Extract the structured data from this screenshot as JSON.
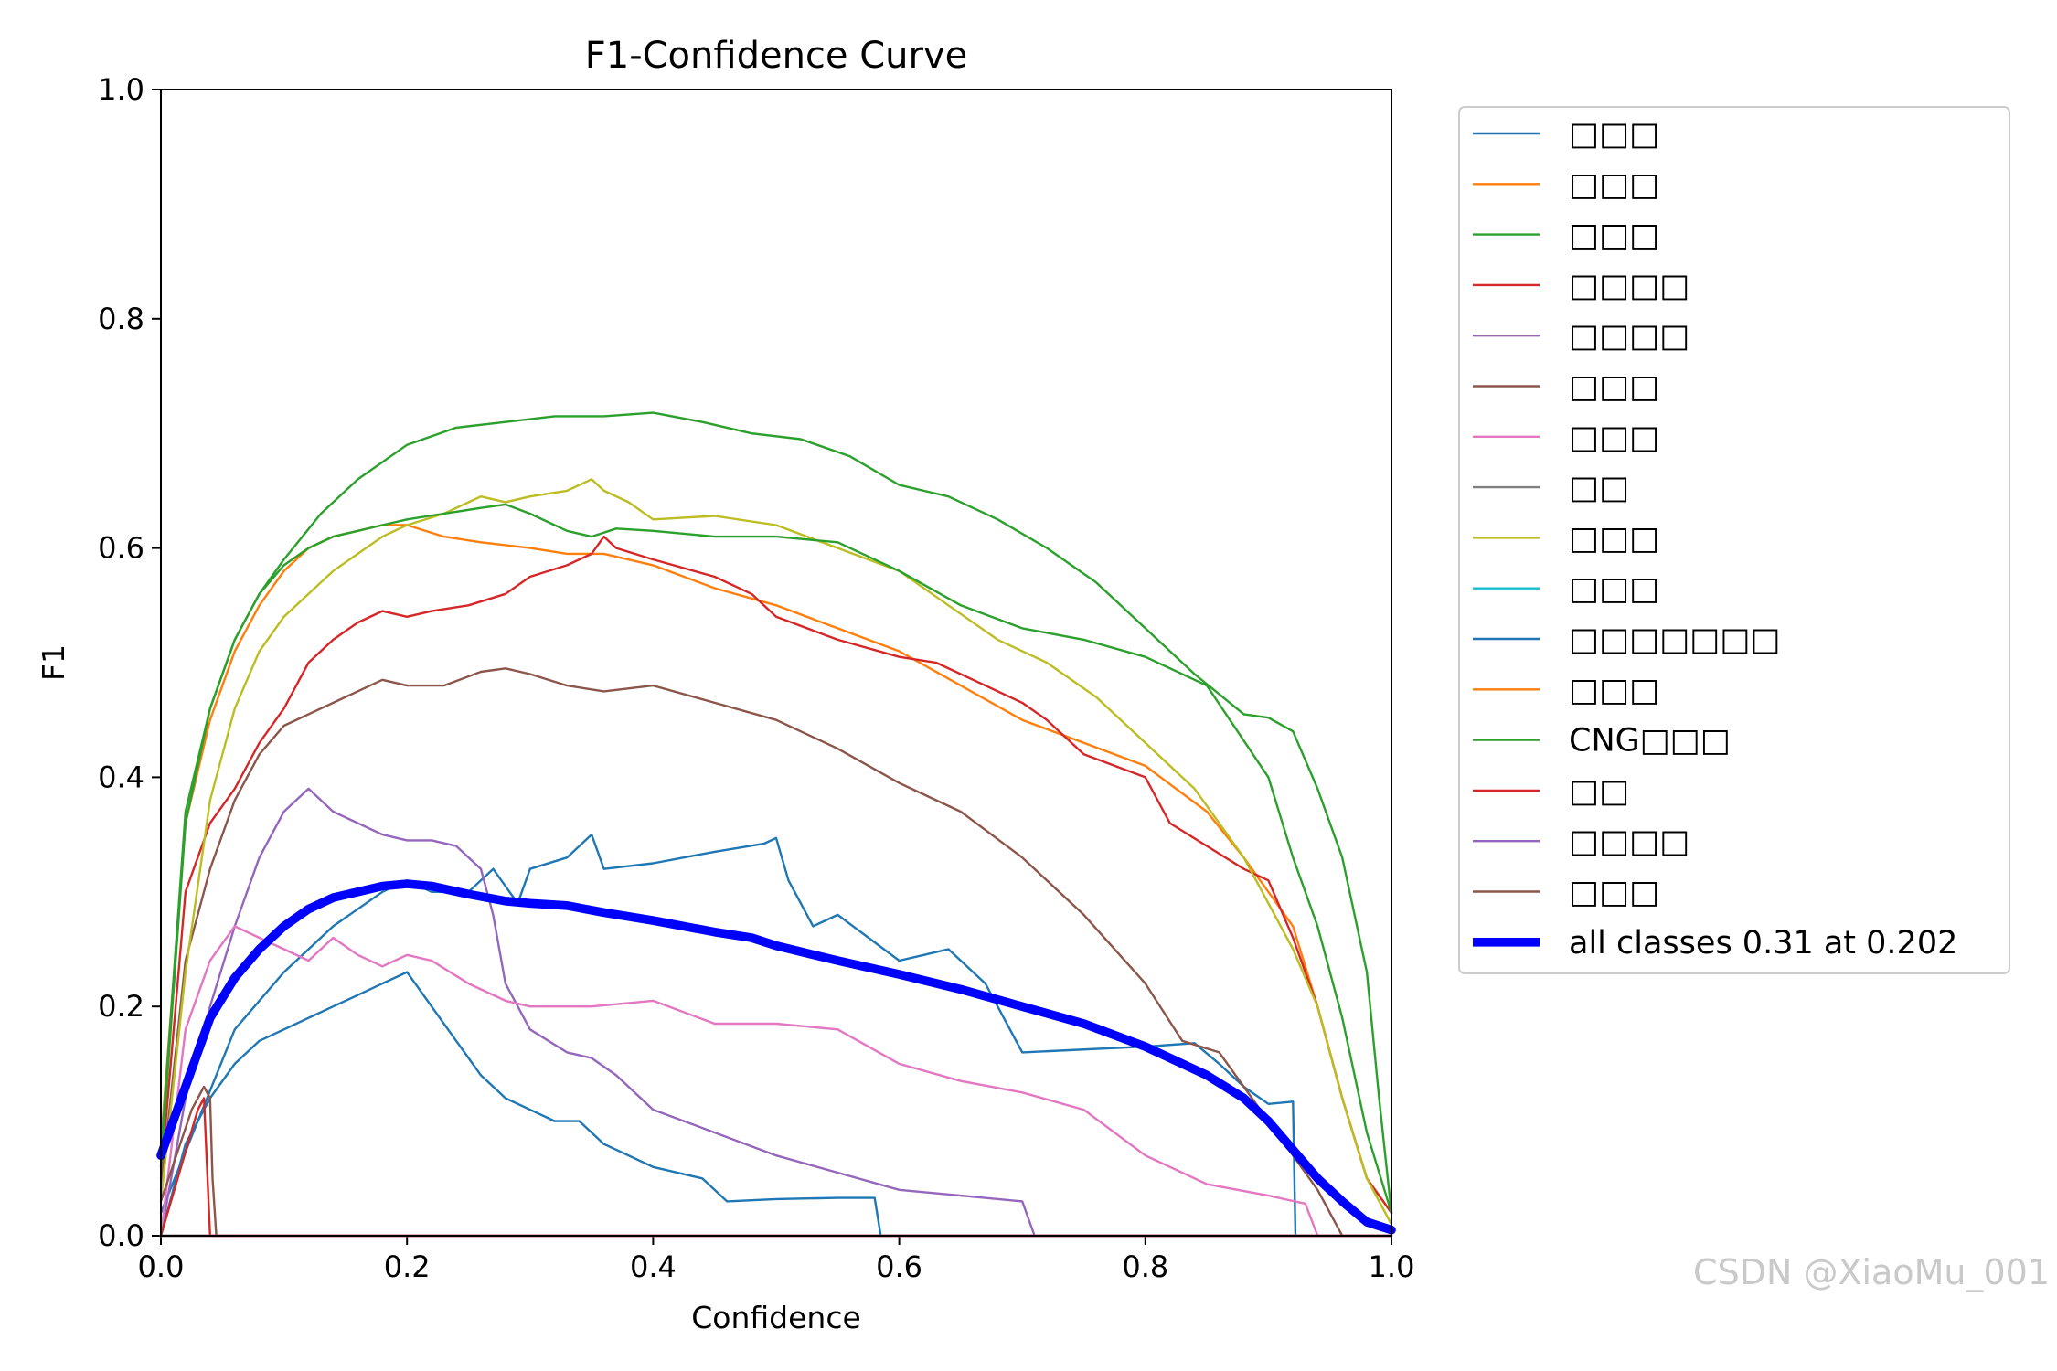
{
  "chart_data": {
    "type": "line",
    "title": "F1-Confidence Curve",
    "xlabel": "Confidence",
    "ylabel": "F1",
    "xlim": [
      0.0,
      1.0
    ],
    "ylim": [
      0.0,
      1.0
    ],
    "xticks": [
      "0.0",
      "0.2",
      "0.4",
      "0.6",
      "0.8",
      "1.0"
    ],
    "yticks": [
      "0.0",
      "0.2",
      "0.4",
      "0.6",
      "0.8",
      "1.0"
    ],
    "legend_position": "outside-right",
    "series": [
      {
        "name": "□□□",
        "color": "#1f77b4",
        "width": 1.5,
        "x": [
          0.0,
          0.03,
          0.06,
          0.1,
          0.14,
          0.18,
          0.2,
          0.22,
          0.25,
          0.27,
          0.29,
          0.3,
          0.33,
          0.35,
          0.36,
          0.4,
          0.45,
          0.49,
          0.5,
          0.51,
          0.53,
          0.55,
          0.6,
          0.62,
          0.64,
          0.65,
          0.67,
          0.7,
          0.8,
          0.84,
          0.86,
          0.88,
          0.9,
          0.92,
          0.922,
          0.93,
          1.0
        ],
        "y": [
          0.02,
          0.1,
          0.18,
          0.23,
          0.27,
          0.3,
          0.31,
          0.3,
          0.3,
          0.32,
          0.29,
          0.32,
          0.33,
          0.35,
          0.32,
          0.325,
          0.335,
          0.342,
          0.347,
          0.31,
          0.27,
          0.28,
          0.24,
          0.245,
          0.25,
          0.24,
          0.22,
          0.16,
          0.165,
          0.168,
          0.15,
          0.13,
          0.115,
          0.117,
          0.0,
          0.0,
          0.0
        ]
      },
      {
        "name": "□□□",
        "color": "#ff7f0e",
        "width": 1.5,
        "x": [
          0.0,
          0.02,
          0.04,
          0.06,
          0.08,
          0.1,
          0.12,
          0.14,
          0.16,
          0.18,
          0.2,
          0.23,
          0.26,
          0.3,
          0.33,
          0.36,
          0.4,
          0.45,
          0.5,
          0.55,
          0.6,
          0.65,
          0.7,
          0.75,
          0.8,
          0.85,
          0.88,
          0.9,
          0.92,
          0.94,
          0.96,
          0.98,
          1.0
        ],
        "y": [
          0.08,
          0.36,
          0.45,
          0.51,
          0.55,
          0.58,
          0.6,
          0.61,
          0.615,
          0.62,
          0.62,
          0.61,
          0.605,
          0.6,
          0.595,
          0.595,
          0.585,
          0.565,
          0.55,
          0.53,
          0.51,
          0.48,
          0.45,
          0.43,
          0.41,
          0.37,
          0.33,
          0.3,
          0.27,
          0.2,
          0.12,
          0.05,
          0.02
        ]
      },
      {
        "name": "□□□",
        "color": "#2ca02c",
        "width": 1.5,
        "x": [
          0.0,
          0.02,
          0.04,
          0.06,
          0.08,
          0.1,
          0.13,
          0.16,
          0.2,
          0.24,
          0.28,
          0.32,
          0.36,
          0.4,
          0.44,
          0.48,
          0.52,
          0.56,
          0.6,
          0.64,
          0.68,
          0.72,
          0.76,
          0.8,
          0.84,
          0.88,
          0.9,
          0.92,
          0.94,
          0.96,
          0.98,
          0.99,
          1.0
        ],
        "y": [
          0.07,
          0.37,
          0.46,
          0.52,
          0.56,
          0.59,
          0.63,
          0.66,
          0.69,
          0.705,
          0.71,
          0.715,
          0.715,
          0.718,
          0.71,
          0.7,
          0.695,
          0.68,
          0.655,
          0.645,
          0.625,
          0.6,
          0.57,
          0.53,
          0.49,
          0.455,
          0.452,
          0.44,
          0.39,
          0.33,
          0.23,
          0.12,
          0.02
        ]
      },
      {
        "name": "□□□□",
        "color": "#d62728",
        "width": 1.5,
        "x": [
          0.0,
          0.02,
          0.04,
          0.06,
          0.08,
          0.1,
          0.12,
          0.14,
          0.16,
          0.18,
          0.2,
          0.22,
          0.25,
          0.28,
          0.3,
          0.33,
          0.35,
          0.36,
          0.37,
          0.4,
          0.45,
          0.48,
          0.5,
          0.55,
          0.6,
          0.63,
          0.66,
          0.7,
          0.72,
          0.75,
          0.8,
          0.82,
          0.85,
          0.88,
          0.9,
          0.92,
          0.94,
          0.96,
          0.98,
          1.0
        ],
        "y": [
          0.05,
          0.3,
          0.36,
          0.39,
          0.43,
          0.46,
          0.5,
          0.52,
          0.535,
          0.545,
          0.54,
          0.545,
          0.55,
          0.56,
          0.575,
          0.585,
          0.595,
          0.61,
          0.6,
          0.59,
          0.575,
          0.56,
          0.54,
          0.52,
          0.505,
          0.5,
          0.485,
          0.465,
          0.45,
          0.42,
          0.4,
          0.36,
          0.34,
          0.32,
          0.31,
          0.26,
          0.2,
          0.12,
          0.05,
          0.02
        ]
      },
      {
        "name": "□□□□",
        "color": "#9467bd",
        "width": 1.5,
        "x": [
          0.0,
          0.02,
          0.04,
          0.06,
          0.08,
          0.1,
          0.12,
          0.14,
          0.16,
          0.18,
          0.2,
          0.22,
          0.24,
          0.26,
          0.27,
          0.28,
          0.3,
          0.33,
          0.35,
          0.37,
          0.4,
          0.45,
          0.5,
          0.55,
          0.6,
          0.65,
          0.7,
          0.705,
          0.71,
          1.0
        ],
        "y": [
          0.0,
          0.12,
          0.2,
          0.27,
          0.33,
          0.37,
          0.39,
          0.37,
          0.36,
          0.35,
          0.345,
          0.345,
          0.34,
          0.32,
          0.28,
          0.22,
          0.18,
          0.16,
          0.155,
          0.14,
          0.11,
          0.09,
          0.07,
          0.055,
          0.04,
          0.035,
          0.03,
          0.015,
          0.0,
          0.0
        ]
      },
      {
        "name": "□□□",
        "color": "#8c564b",
        "width": 1.5,
        "x": [
          0.0,
          0.02,
          0.04,
          0.06,
          0.08,
          0.1,
          0.12,
          0.15,
          0.18,
          0.2,
          0.23,
          0.26,
          0.28,
          0.3,
          0.33,
          0.36,
          0.4,
          0.45,
          0.5,
          0.55,
          0.6,
          0.63,
          0.65,
          0.7,
          0.75,
          0.8,
          0.83,
          0.86,
          0.88,
          0.9,
          0.92,
          0.94,
          0.96,
          1.0
        ],
        "y": [
          0.04,
          0.24,
          0.32,
          0.38,
          0.42,
          0.445,
          0.455,
          0.47,
          0.485,
          0.48,
          0.48,
          0.492,
          0.495,
          0.49,
          0.48,
          0.475,
          0.48,
          0.465,
          0.45,
          0.425,
          0.395,
          0.38,
          0.37,
          0.33,
          0.28,
          0.22,
          0.17,
          0.16,
          0.13,
          0.1,
          0.07,
          0.04,
          0.0,
          0.0
        ]
      },
      {
        "name": "□□□",
        "color": "#e377c2",
        "width": 1.5,
        "x": [
          0.0,
          0.02,
          0.04,
          0.06,
          0.08,
          0.1,
          0.12,
          0.14,
          0.16,
          0.18,
          0.2,
          0.22,
          0.25,
          0.28,
          0.3,
          0.35,
          0.4,
          0.45,
          0.5,
          0.55,
          0.6,
          0.65,
          0.7,
          0.75,
          0.8,
          0.85,
          0.9,
          0.93,
          0.94,
          1.0
        ],
        "y": [
          0.0,
          0.18,
          0.24,
          0.27,
          0.26,
          0.25,
          0.24,
          0.26,
          0.245,
          0.235,
          0.245,
          0.24,
          0.22,
          0.205,
          0.2,
          0.2,
          0.205,
          0.185,
          0.185,
          0.18,
          0.15,
          0.135,
          0.125,
          0.11,
          0.07,
          0.045,
          0.035,
          0.028,
          0.0,
          0.0
        ]
      },
      {
        "name": "□□",
        "color": "#7f7f7f",
        "width": 1.5,
        "x": [
          0.0,
          1.0
        ],
        "y": [
          0.0,
          0.0
        ]
      },
      {
        "name": "□□□",
        "color": "#bcbd22",
        "width": 1.5,
        "x": [
          0.0,
          0.02,
          0.04,
          0.06,
          0.08,
          0.1,
          0.12,
          0.14,
          0.16,
          0.18,
          0.2,
          0.23,
          0.26,
          0.28,
          0.3,
          0.33,
          0.35,
          0.36,
          0.38,
          0.4,
          0.45,
          0.5,
          0.55,
          0.6,
          0.64,
          0.68,
          0.72,
          0.76,
          0.8,
          0.84,
          0.88,
          0.9,
          0.92,
          0.94,
          0.96,
          0.98,
          1.0
        ],
        "y": [
          0.03,
          0.23,
          0.38,
          0.46,
          0.51,
          0.54,
          0.56,
          0.58,
          0.595,
          0.61,
          0.62,
          0.63,
          0.645,
          0.64,
          0.645,
          0.65,
          0.66,
          0.65,
          0.64,
          0.625,
          0.628,
          0.62,
          0.6,
          0.58,
          0.55,
          0.52,
          0.5,
          0.47,
          0.43,
          0.39,
          0.33,
          0.29,
          0.25,
          0.2,
          0.12,
          0.05,
          0.01
        ]
      },
      {
        "name": "□□□",
        "color": "#17becf",
        "width": 1.5,
        "x": [
          0.0,
          1.0
        ],
        "y": [
          0.0,
          0.0
        ]
      },
      {
        "name": "□□□□□□□",
        "color": "#1f77b4",
        "width": 1.5,
        "x": [
          0.0,
          0.02,
          0.04,
          0.06,
          0.08,
          0.1,
          0.12,
          0.14,
          0.16,
          0.18,
          0.2,
          0.22,
          0.24,
          0.26,
          0.28,
          0.3,
          0.32,
          0.34,
          0.36,
          0.38,
          0.4,
          0.44,
          0.46,
          0.5,
          0.55,
          0.58,
          0.585,
          0.59,
          1.0
        ],
        "y": [
          0.0,
          0.08,
          0.12,
          0.15,
          0.17,
          0.18,
          0.19,
          0.2,
          0.21,
          0.22,
          0.23,
          0.2,
          0.17,
          0.14,
          0.12,
          0.11,
          0.1,
          0.1,
          0.08,
          0.07,
          0.06,
          0.05,
          0.03,
          0.032,
          0.033,
          0.033,
          0.0,
          0.0,
          0.0
        ]
      },
      {
        "name": "□□□",
        "color": "#ff7f0e",
        "width": 1.5,
        "x": [
          0.0,
          1.0
        ],
        "y": [
          0.0,
          0.0
        ]
      },
      {
        "name": "CNG□□□",
        "color": "#2ca02c",
        "width": 1.5,
        "x": [
          0.0,
          0.02,
          0.04,
          0.06,
          0.08,
          0.1,
          0.12,
          0.14,
          0.16,
          0.18,
          0.2,
          0.23,
          0.26,
          0.28,
          0.3,
          0.33,
          0.35,
          0.37,
          0.4,
          0.45,
          0.5,
          0.55,
          0.6,
          0.65,
          0.7,
          0.75,
          0.8,
          0.85,
          0.9,
          0.92,
          0.94,
          0.96,
          0.98,
          1.0
        ],
        "y": [
          0.06,
          0.36,
          0.46,
          0.52,
          0.56,
          0.585,
          0.6,
          0.61,
          0.615,
          0.62,
          0.625,
          0.63,
          0.635,
          0.638,
          0.63,
          0.615,
          0.61,
          0.617,
          0.615,
          0.61,
          0.61,
          0.605,
          0.58,
          0.55,
          0.53,
          0.52,
          0.505,
          0.48,
          0.4,
          0.33,
          0.27,
          0.19,
          0.09,
          0.02
        ]
      },
      {
        "name": "□□",
        "color": "#d62728",
        "width": 1.5,
        "x": [
          0.0,
          0.03,
          0.035,
          0.04,
          1.0
        ],
        "y": [
          0.0,
          0.11,
          0.12,
          0.0,
          0.0
        ]
      },
      {
        "name": "□□□□",
        "color": "#9467bd",
        "width": 1.5,
        "x": [
          0.0,
          1.0
        ],
        "y": [
          0.0,
          0.0
        ]
      },
      {
        "name": "□□□",
        "color": "#8c564b",
        "width": 1.5,
        "x": [
          0.0,
          0.025,
          0.03,
          0.035,
          0.04,
          0.042,
          0.045,
          1.0
        ],
        "y": [
          0.03,
          0.11,
          0.12,
          0.13,
          0.12,
          0.05,
          0.0,
          0.0
        ]
      },
      {
        "name": "all classes 0.31 at 0.202",
        "color": "#0000ff",
        "width": 6.0,
        "x": [
          0.0,
          0.02,
          0.04,
          0.06,
          0.08,
          0.1,
          0.12,
          0.14,
          0.16,
          0.18,
          0.2,
          0.22,
          0.25,
          0.28,
          0.3,
          0.33,
          0.36,
          0.4,
          0.45,
          0.48,
          0.5,
          0.55,
          0.6,
          0.65,
          0.7,
          0.75,
          0.8,
          0.85,
          0.88,
          0.9,
          0.92,
          0.94,
          0.96,
          0.98,
          1.0
        ],
        "y": [
          0.07,
          0.13,
          0.19,
          0.225,
          0.25,
          0.27,
          0.285,
          0.295,
          0.3,
          0.305,
          0.307,
          0.305,
          0.298,
          0.292,
          0.29,
          0.288,
          0.282,
          0.275,
          0.265,
          0.26,
          0.253,
          0.24,
          0.228,
          0.215,
          0.2,
          0.185,
          0.165,
          0.14,
          0.12,
          0.1,
          0.075,
          0.05,
          0.03,
          0.012,
          0.005
        ]
      }
    ]
  },
  "watermark": "CSDN @XiaoMu_001"
}
